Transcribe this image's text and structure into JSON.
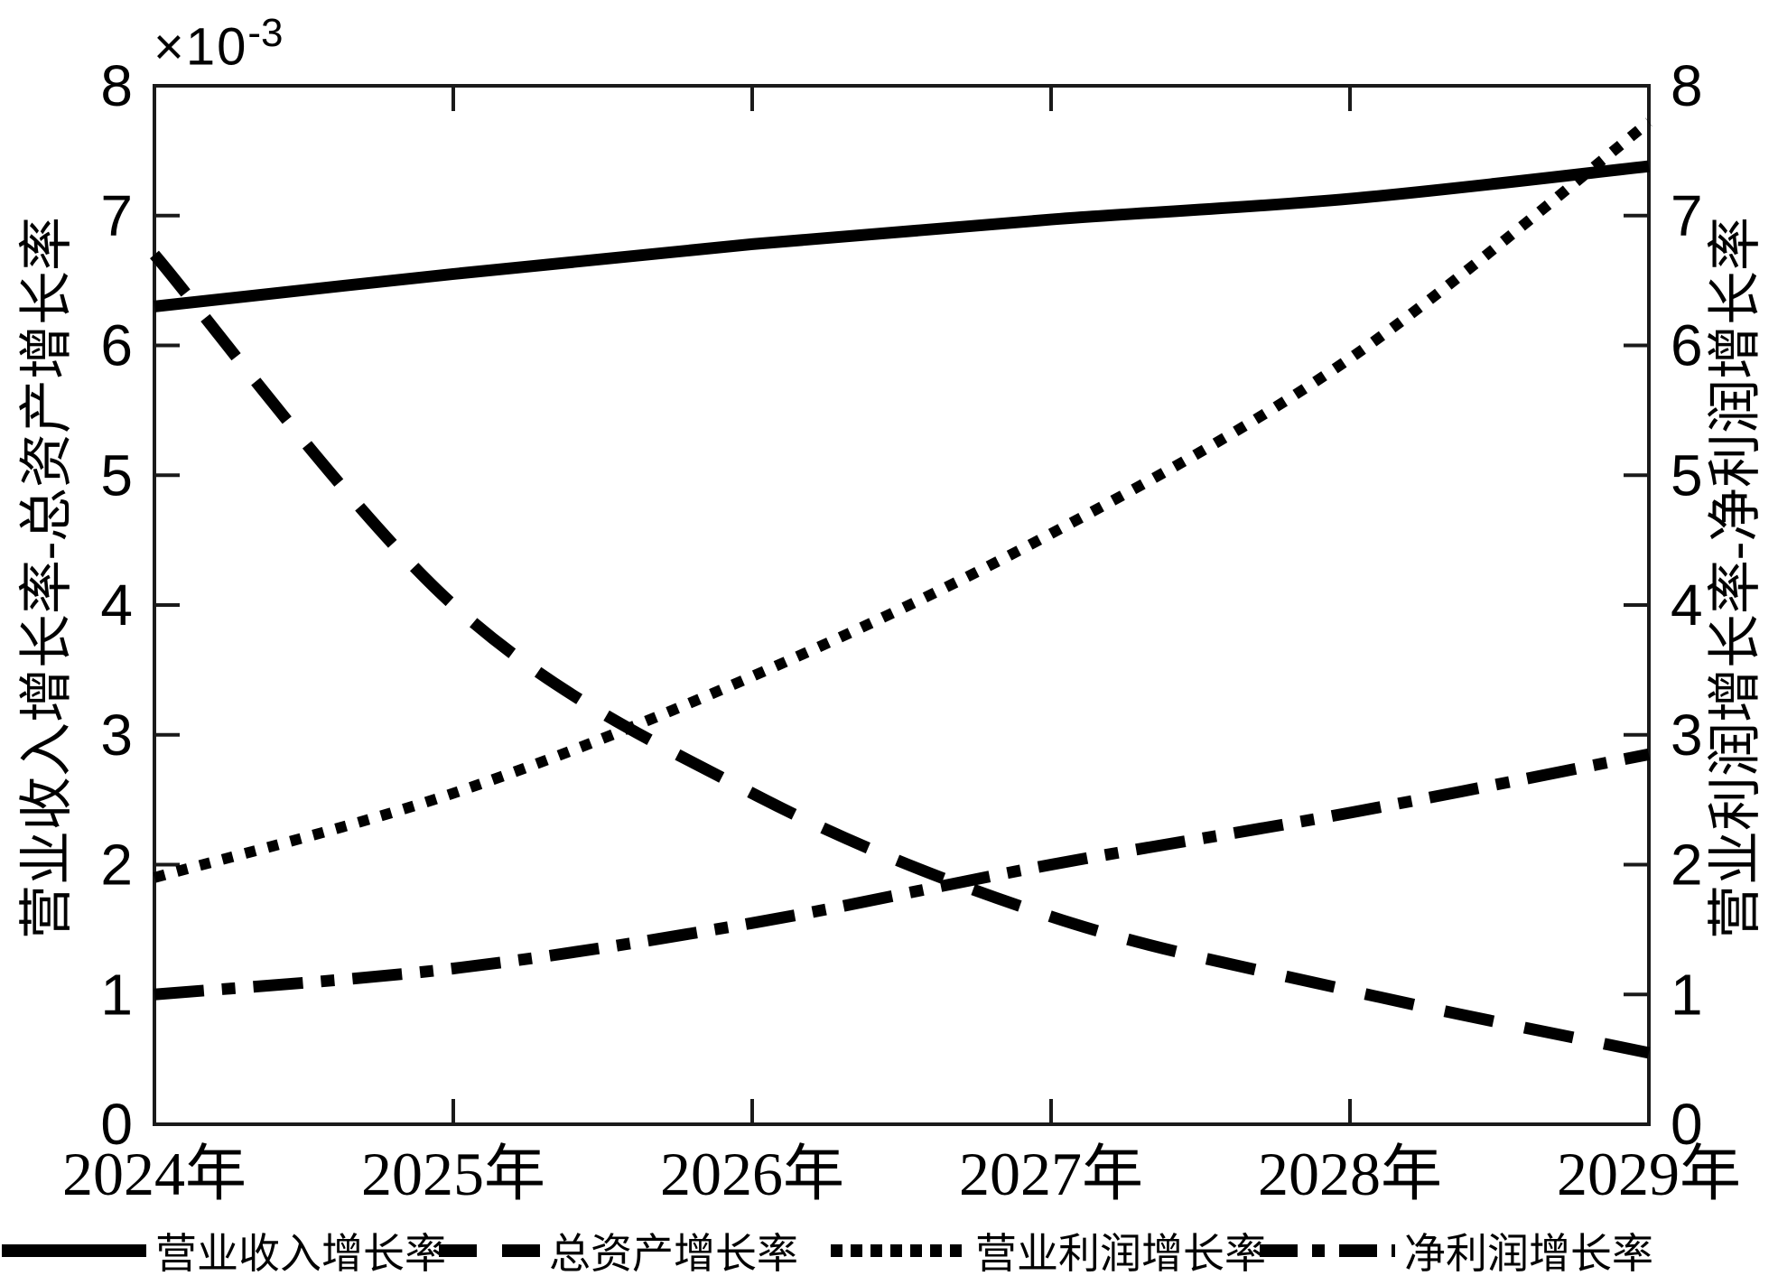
{
  "figure": {
    "background": "#ffffff",
    "axis_color": "#1a1a1a",
    "line_color": "#000000"
  },
  "offset_label": {
    "prefix": "×10",
    "exponent": "-3"
  },
  "left_axis_label": "营业收入增长率-总资产增长率",
  "right_axis_label": "营业利润增长率-净利润增长率",
  "chart_data": {
    "type": "line",
    "categories": [
      "2024年",
      "2025年",
      "2026年",
      "2027年",
      "2028年",
      "2029年"
    ],
    "y_ticks": [
      "0",
      "1",
      "2",
      "3",
      "4",
      "5",
      "6",
      "7",
      "8"
    ],
    "ylim": [
      0,
      8
    ],
    "left_axis_multiplier": "1e-3",
    "grid": false,
    "legend_position": "bottom",
    "series": [
      {
        "name": "营业收入增长率",
        "style": "solid",
        "axis": "left",
        "values": [
          6.3,
          6.55,
          6.78,
          6.97,
          7.13,
          7.38
        ]
      },
      {
        "name": "总资产增长率",
        "style": "dashed",
        "axis": "left",
        "values": [
          6.7,
          4.0,
          2.55,
          1.6,
          1.03,
          0.55
        ]
      },
      {
        "name": "营业利润增长率",
        "style": "dotted",
        "axis": "right",
        "values": [
          1.9,
          2.55,
          3.45,
          4.55,
          5.9,
          7.72
        ]
      },
      {
        "name": "净利润增长率",
        "style": "dashdot",
        "axis": "right",
        "values": [
          1.0,
          1.2,
          1.55,
          2.0,
          2.4,
          2.85
        ]
      }
    ]
  },
  "legend": {
    "items": [
      {
        "label": "营业收入增长率",
        "style": "solid"
      },
      {
        "label": "总资产增长率",
        "style": "dashed"
      },
      {
        "label": "营业利润增长率",
        "style": "dotted"
      },
      {
        "label": "净利润增长率",
        "style": "dashdot"
      }
    ]
  }
}
